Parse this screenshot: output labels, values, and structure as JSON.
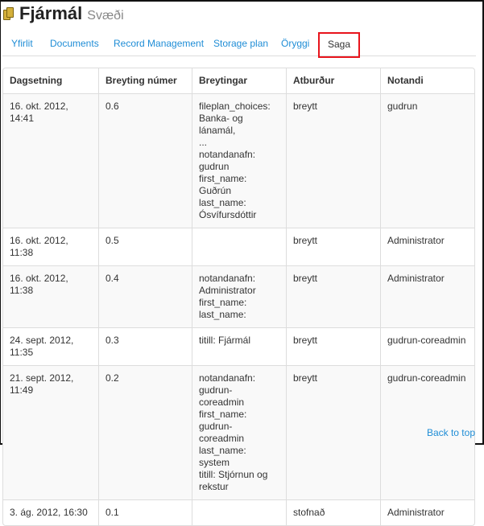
{
  "header": {
    "title": "Fjármál",
    "subtitle": "Svæði",
    "icon": "folder-icon"
  },
  "tabs": [
    {
      "label": "Yfirlit"
    },
    {
      "label": "Documents"
    },
    {
      "label": "Record Management"
    },
    {
      "label": "Storage plan"
    },
    {
      "label": "Öryggi"
    },
    {
      "label": "Saga",
      "active": true
    }
  ],
  "table": {
    "columns": [
      "Dagsetning",
      "Breyting númer",
      "Breytingar",
      "Atburður",
      "Notandi"
    ],
    "rows": [
      {
        "date": "16. okt. 2012, 14:41",
        "version": "0.6",
        "changes": "fileplan_choices:\nBanka- og lánamál,\n...\nnotandanafn: gudrun\nfirst_name: Guðrún\nlast_name:\nÓsvífursdóttir",
        "event": "breytt",
        "user": "gudrun"
      },
      {
        "date": "16. okt. 2012, 11:38",
        "version": "0.5",
        "changes": "",
        "event": "breytt",
        "user": "Administrator"
      },
      {
        "date": "16. okt. 2012, 11:38",
        "version": "0.4",
        "changes": "notandanafn:\nAdministrator\nfirst_name:\nlast_name:",
        "event": "breytt",
        "user": "Administrator"
      },
      {
        "date": "24. sept. 2012, 11:35",
        "version": "0.3",
        "changes": "titill: Fjármál",
        "event": "breytt",
        "user": "gudrun-coreadmin"
      },
      {
        "date": "21. sept. 2012, 11:49",
        "version": "0.2",
        "changes": "notandanafn: gudrun-\ncoreadmin\nfirst_name: gudrun-\ncoreadmin\nlast_name: system\ntitill: Stjórnun og\nrekstur",
        "event": "breytt",
        "user": "gudrun-coreadmin"
      },
      {
        "date": "3. ág. 2012, 16:30",
        "version": "0.1",
        "changes": "",
        "event": "stofnað",
        "user": "Administrator"
      }
    ]
  },
  "footer": {
    "back_to_top": "Back to top"
  }
}
